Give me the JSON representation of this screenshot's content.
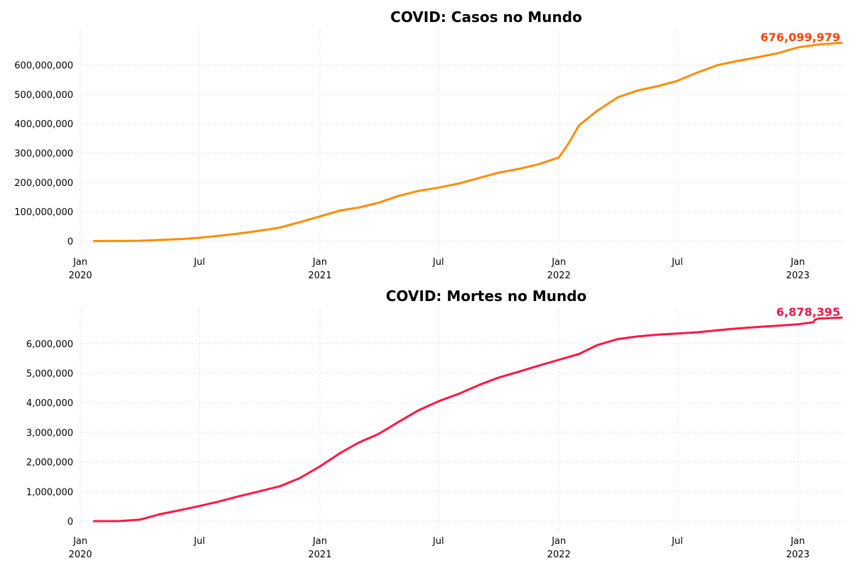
{
  "chart_data": [
    {
      "type": "line",
      "title": "COVID: Casos no Mundo",
      "xlabel": "",
      "ylabel": "",
      "color": "#ff8c00",
      "label_color": "#ff4500",
      "end_label": "676,099,979",
      "xlim": [
        "2020-01-01",
        "2023-03-10"
      ],
      "ylim": [
        -40000000,
        725000000
      ],
      "y_ticks": [
        0,
        100000000,
        200000000,
        300000000,
        400000000,
        500000000,
        600000000
      ],
      "y_tick_labels": [
        "0",
        "100,000,000",
        "200,000,000",
        "300,000,000",
        "400,000,000",
        "500,000,000",
        "600,000,000"
      ],
      "x_ticks": [
        "2020-01-01",
        "2020-07-01",
        "2021-01-01",
        "2021-07-01",
        "2022-01-01",
        "2022-07-01",
        "2023-01-01"
      ],
      "x_tick_labels": [
        "Jan\n2020",
        "Jul",
        "Jan\n2021",
        "Jul",
        "Jan\n2022",
        "Jul",
        "Jan\n2023"
      ],
      "grid": true,
      "series": [
        {
          "x": [
            "2020-01-22",
            "2020-03-01",
            "2020-04-01",
            "2020-05-01",
            "2020-06-01",
            "2020-07-01",
            "2020-08-01",
            "2020-09-01",
            "2020-10-01",
            "2020-11-01",
            "2020-12-01",
            "2021-01-01",
            "2021-02-01",
            "2021-03-01",
            "2021-04-01",
            "2021-05-01",
            "2021-06-01",
            "2021-07-01",
            "2021-08-01",
            "2021-09-01",
            "2021-10-01",
            "2021-11-01",
            "2021-12-01",
            "2022-01-01",
            "2022-01-15",
            "2022-02-01",
            "2022-03-01",
            "2022-04-01",
            "2022-05-01",
            "2022-06-01",
            "2022-07-01",
            "2022-08-01",
            "2022-09-01",
            "2022-10-01",
            "2022-11-01",
            "2022-12-01",
            "2023-01-01",
            "2023-02-01",
            "2023-03-09"
          ],
          "values": [
            0,
            100000,
            1000000,
            3500000,
            6500000,
            11000000,
            18000000,
            26000000,
            35000000,
            46000000,
            64000000,
            84000000,
            104000000,
            114000000,
            131000000,
            154000000,
            171000000,
            182000000,
            196000000,
            215000000,
            233000000,
            246000000,
            262000000,
            285000000,
            330000000,
            395000000,
            445000000,
            490000000,
            513000000,
            528000000,
            546000000,
            575000000,
            600000000,
            614000000,
            627000000,
            640000000,
            660000000,
            670000000,
            676099979
          ]
        }
      ]
    },
    {
      "type": "line",
      "title": "COVID: Mortes no Mundo",
      "xlabel": "",
      "ylabel": "",
      "color": "#ff1744",
      "label_color": "#e6194b",
      "end_label": "6,878,395",
      "xlim": [
        "2020-01-01",
        "2023-03-10"
      ],
      "ylim": [
        -360000,
        7220000
      ],
      "y_ticks": [
        0,
        1000000,
        2000000,
        3000000,
        4000000,
        5000000,
        6000000
      ],
      "y_tick_labels": [
        "0",
        "1,000,000",
        "2,000,000",
        "3,000,000",
        "4,000,000",
        "5,000,000",
        "6,000,000"
      ],
      "x_ticks": [
        "2020-01-01",
        "2020-07-01",
        "2021-01-01",
        "2021-07-01",
        "2022-01-01",
        "2022-07-01",
        "2023-01-01"
      ],
      "x_tick_labels": [
        "Jan\n2020",
        "Jul",
        "Jan\n2021",
        "Jul",
        "Jan\n2022",
        "Jul",
        "Jan\n2023"
      ],
      "grid": true,
      "series": [
        {
          "x": [
            "2020-01-22",
            "2020-03-01",
            "2020-04-01",
            "2020-05-01",
            "2020-06-01",
            "2020-07-01",
            "2020-08-01",
            "2020-09-01",
            "2020-10-01",
            "2020-11-01",
            "2020-12-01",
            "2021-01-01",
            "2021-02-01",
            "2021-03-01",
            "2021-04-01",
            "2021-05-01",
            "2021-06-01",
            "2021-07-01",
            "2021-08-01",
            "2021-09-01",
            "2021-10-01",
            "2021-11-01",
            "2021-12-01",
            "2022-01-01",
            "2022-02-01",
            "2022-03-01",
            "2022-04-01",
            "2022-05-01",
            "2022-06-01",
            "2022-07-01",
            "2022-08-01",
            "2022-09-01",
            "2022-10-01",
            "2022-11-01",
            "2022-12-01",
            "2023-01-01",
            "2023-01-25",
            "2023-01-27",
            "2023-02-01",
            "2023-03-09"
          ],
          "values": [
            0,
            3000,
            50000,
            230000,
            370000,
            510000,
            670000,
            850000,
            1010000,
            1180000,
            1450000,
            1850000,
            2300000,
            2650000,
            2950000,
            3350000,
            3750000,
            4050000,
            4300000,
            4600000,
            4850000,
            5050000,
            5250000,
            5450000,
            5650000,
            5950000,
            6150000,
            6240000,
            6300000,
            6340000,
            6380000,
            6450000,
            6510000,
            6560000,
            6600000,
            6650000,
            6720000,
            6800000,
            6840000,
            6878395
          ]
        }
      ]
    }
  ]
}
